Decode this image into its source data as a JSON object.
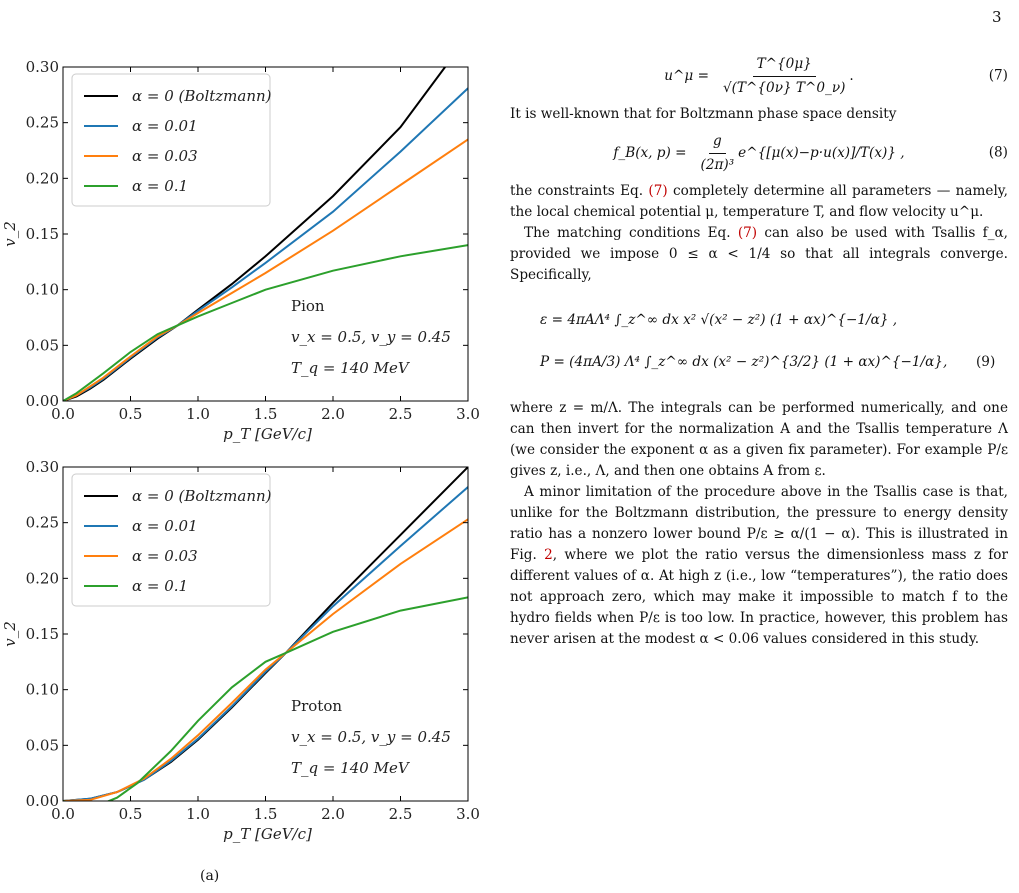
{
  "page_number": "3",
  "text": {
    "eq7_lhs": "u^μ =",
    "eq7_num": "T^{0μ}",
    "eq7_den": "√(T^{0ν} T^0_ν)",
    "eq7_tail": ".",
    "eq7_no": "(7)",
    "p1": "It is well-known that for Boltzmann phase space density",
    "eq8_lhs": "f_B(x, p) =",
    "eq8_num": "g",
    "eq8_den": "(2π)³",
    "eq8_exp": "e^{[μ(x)−p·u(x)]/T(x)} ,",
    "eq8_no": "(8)",
    "p2a": "the constraints Eq. ",
    "p2_ref": "(7)",
    "p2b": " completely determine all parameters — namely, the local chemical potential μ, temperature T, and flow velocity u^μ.",
    "p3a": "The matching conditions Eq. ",
    "p3_ref": "(7)",
    "p3b": " can also be used with Tsallis f_α, provided we impose 0 ≤ α < 1/4 so that all integrals converge. Specifically,",
    "eq9a": "ε = 4πAΛ⁴ ∫_z^∞ dx x² √(x² − z²) (1 + αx)^{−1/α} ,",
    "eq9b": "P = (4πA/3) Λ⁴ ∫_z^∞ dx (x² − z²)^{3/2} (1 + αx)^{−1/α},",
    "eq9_no": "(9)",
    "p4": "where z = m/Λ. The integrals can be performed numerically, and one can then invert for the normalization A and the Tsallis temperature Λ (we consider the exponent α as a given fix parameter). For example P/ε gives z, i.e., Λ, and then one obtains A from ε.",
    "p5a": "A minor limitation of the procedure above in the Tsallis case is that, unlike for the Boltzmann distribution, the pressure to energy density ratio has a nonzero lower bound P/ε ≥ α/(1 − α). This is illustrated in Fig. ",
    "p5_ref": "2",
    "p5b": ", where we plot the ratio versus the dimensionless mass z for different values of α. At high z (i.e., low “temperatures”), the ratio does not approach zero, which may make it impossible to match f to the hydro fields when P/ε is too low. In practice, however, this problem has never arisen at the modest α < 0.06 values considered in this study.",
    "caption_stub": "(a)"
  },
  "colors": {
    "boltzmann": "#000000",
    "a001": "#1f77b4",
    "a003": "#ff7f0e",
    "a01": "#2ca02c"
  },
  "chart_data": [
    {
      "type": "line",
      "xlabel": "p_T [GeV/c]",
      "ylabel": "v_2",
      "xlim": [
        0.0,
        3.0
      ],
      "ylim": [
        0.0,
        0.3
      ],
      "xticks": [
        "0.0",
        "0.5",
        "1.0",
        "1.5",
        "2.0",
        "2.5",
        "3.0"
      ],
      "yticks": [
        "0.00",
        "0.05",
        "0.10",
        "0.15",
        "0.20",
        "0.25",
        "0.30"
      ],
      "legend_position": "top-left",
      "annotation": [
        "Pion",
        "v_x = 0.5, v_y = 0.45",
        "T_q = 140 MeV"
      ],
      "series": [
        {
          "name": "α = 0 (Boltzmann)",
          "color": "#000000",
          "x": [
            0,
            0.1,
            0.2,
            0.3,
            0.5,
            0.7,
            0.85,
            1.0,
            1.25,
            1.5,
            2.0,
            2.5,
            2.83
          ],
          "y": [
            0,
            0.004,
            0.011,
            0.019,
            0.038,
            0.056,
            0.068,
            0.082,
            0.105,
            0.13,
            0.184,
            0.246,
            0.3
          ]
        },
        {
          "name": "α = 0.01",
          "color": "#1f77b4",
          "x": [
            0,
            0.1,
            0.2,
            0.3,
            0.5,
            0.7,
            0.85,
            1.0,
            1.25,
            1.5,
            2.0,
            2.5,
            3.0
          ],
          "y": [
            0,
            0.005,
            0.012,
            0.02,
            0.039,
            0.057,
            0.068,
            0.081,
            0.102,
            0.124,
            0.17,
            0.224,
            0.281
          ]
        },
        {
          "name": "α = 0.03",
          "color": "#ff7f0e",
          "x": [
            0,
            0.1,
            0.2,
            0.3,
            0.5,
            0.7,
            0.85,
            1.0,
            1.25,
            1.5,
            2.0,
            2.5,
            3.0
          ],
          "y": [
            0,
            0.005,
            0.013,
            0.021,
            0.04,
            0.058,
            0.068,
            0.079,
            0.097,
            0.115,
            0.153,
            0.194,
            0.235
          ]
        },
        {
          "name": "α = 0.1",
          "color": "#2ca02c",
          "x": [
            0,
            0.1,
            0.2,
            0.3,
            0.5,
            0.7,
            0.85,
            1.0,
            1.25,
            1.5,
            2.0,
            2.5,
            3.0
          ],
          "y": [
            0,
            0.007,
            0.016,
            0.025,
            0.044,
            0.06,
            0.068,
            0.076,
            0.088,
            0.1,
            0.117,
            0.13,
            0.14
          ]
        }
      ]
    },
    {
      "type": "line",
      "xlabel": "p_T [GeV/c]",
      "ylabel": "v_2",
      "xlim": [
        0.0,
        3.0
      ],
      "ylim": [
        0.0,
        0.3
      ],
      "xticks": [
        "0.0",
        "0.5",
        "1.0",
        "1.5",
        "2.0",
        "2.5",
        "3.0"
      ],
      "yticks": [
        "0.00",
        "0.05",
        "0.10",
        "0.15",
        "0.20",
        "0.25",
        "0.30"
      ],
      "legend_position": "top-left",
      "annotation": [
        "Proton",
        "v_x = 0.5, v_y = 0.45",
        "T_q = 140 MeV"
      ],
      "series": [
        {
          "name": "α = 0 (Boltzmann)",
          "color": "#000000",
          "x": [
            0,
            0.2,
            0.4,
            0.6,
            0.8,
            1.0,
            1.25,
            1.5,
            1.65,
            2.0,
            2.5,
            3.0
          ],
          "y": [
            0,
            0.002,
            0.008,
            0.019,
            0.035,
            0.055,
            0.084,
            0.115,
            0.133,
            0.178,
            0.239,
            0.3
          ]
        },
        {
          "name": "α = 0.01",
          "color": "#1f77b4",
          "x": [
            0,
            0.2,
            0.4,
            0.6,
            0.8,
            1.0,
            1.25,
            1.5,
            1.65,
            2.0,
            2.5,
            3.0
          ],
          "y": [
            0,
            0.002,
            0.008,
            0.019,
            0.036,
            0.056,
            0.085,
            0.116,
            0.133,
            0.175,
            0.229,
            0.282
          ]
        },
        {
          "name": "α = 0.03",
          "color": "#ff7f0e",
          "x": [
            0,
            0.2,
            0.4,
            0.6,
            0.8,
            1.0,
            1.25,
            1.5,
            1.65,
            2.0,
            2.5,
            3.0
          ],
          "y": [
            0,
            0.001,
            0.008,
            0.02,
            0.038,
            0.059,
            0.088,
            0.118,
            0.133,
            0.168,
            0.213,
            0.253
          ]
        },
        {
          "name": "α = 0.1",
          "color": "#2ca02c",
          "x": [
            0,
            0.1,
            0.2,
            0.3,
            0.4,
            0.55,
            0.8,
            1.0,
            1.25,
            1.5,
            1.65,
            2.0,
            2.5,
            3.0
          ],
          "y": [
            0,
            -0.002,
            -0.003,
            -0.002,
            0.003,
            0.016,
            0.045,
            0.072,
            0.102,
            0.125,
            0.133,
            0.152,
            0.171,
            0.183
          ]
        }
      ]
    }
  ]
}
